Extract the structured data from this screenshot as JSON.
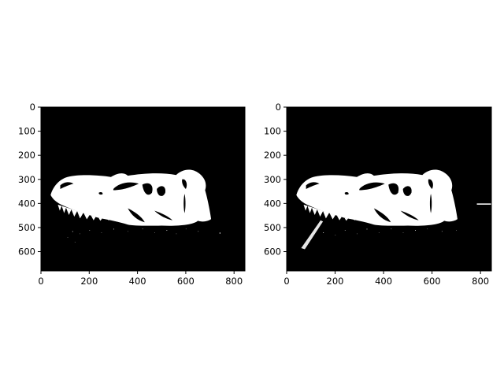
{
  "figure": {
    "panels": [
      {
        "name": "left-image",
        "x_ticks": [
          "0",
          "200",
          "400",
          "600",
          "800"
        ],
        "y_ticks": [
          "0",
          "100",
          "200",
          "300",
          "400",
          "500",
          "600"
        ],
        "image": "binary thresholded T. rex skull (white on black)"
      },
      {
        "name": "right-image",
        "x_ticks": [
          "0",
          "200",
          "400",
          "600",
          "800"
        ],
        "y_ticks": [
          "0",
          "100",
          "200",
          "300",
          "400",
          "500",
          "600"
        ],
        "image": "binary thresholded T. rex skull with more speckle noise (white on black)"
      }
    ],
    "colors": {
      "background": "#000000",
      "foreground": "#ffffff",
      "frame": "#000000"
    }
  }
}
